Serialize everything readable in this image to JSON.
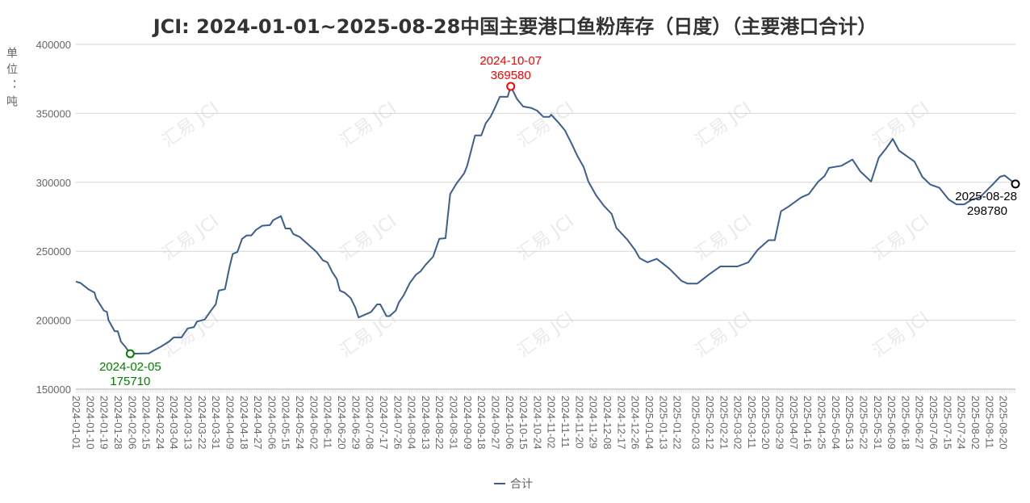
{
  "chart_data": {
    "type": "line",
    "title": "JCI: 2024-01-01~2025-08-28中国主要港口鱼粉库存（日度）（主要港口合计）",
    "ylabel": "单位：吨",
    "xlabel": "",
    "ylim": [
      150000,
      400000
    ],
    "yticks": [
      150000,
      200000,
      250000,
      300000,
      350000,
      400000
    ],
    "xlim": [
      "2024-01-01",
      "2025-08-28"
    ],
    "xticks": [
      "2024-01-01",
      "2024-01-10",
      "2024-01-19",
      "2024-01-28",
      "2024-02-06",
      "2024-02-15",
      "2024-02-24",
      "2024-03-04",
      "2024-03-13",
      "2024-03-22",
      "2024-03-31",
      "2024-04-09",
      "2024-04-18",
      "2024-04-27",
      "2024-05-06",
      "2024-05-15",
      "2024-05-24",
      "2024-06-02",
      "2024-06-11",
      "2024-06-20",
      "2024-06-29",
      "2024-07-08",
      "2024-07-17",
      "2024-07-26",
      "2024-08-04",
      "2024-08-13",
      "2024-08-22",
      "2024-08-31",
      "2024-09-09",
      "2024-09-18",
      "2024-09-27",
      "2024-10-06",
      "2024-10-15",
      "2024-10-24",
      "2024-11-02",
      "2024-11-11",
      "2024-11-20",
      "2024-11-29",
      "2024-12-08",
      "2024-12-17",
      "2024-12-26",
      "2025-01-04",
      "2025-01-13",
      "2025-01-22",
      "2025-02-03",
      "2025-02-12",
      "2025-02-21",
      "2025-03-02",
      "2025-03-11",
      "2025-03-20",
      "2025-03-29",
      "2025-04-07",
      "2025-04-16",
      "2025-04-25",
      "2025-05-04",
      "2025-05-13",
      "2025-05-22",
      "2025-05-31",
      "2025-06-09",
      "2025-06-18",
      "2025-06-27",
      "2025-07-06",
      "2025-07-15",
      "2025-07-24",
      "2025-08-02",
      "2025-08-11",
      "2025-08-20"
    ],
    "grid": true,
    "legend_position": "bottom",
    "series": [
      {
        "name": "合计",
        "color": "#3c5f8e",
        "points": [
          [
            "2024-01-01",
            228000
          ],
          [
            "2024-01-04",
            227000
          ],
          [
            "2024-01-09",
            222500
          ],
          [
            "2024-01-13",
            220000
          ],
          [
            "2024-01-14",
            216000
          ],
          [
            "2024-01-19",
            207000
          ],
          [
            "2024-01-21",
            206000
          ],
          [
            "2024-01-22",
            200000
          ],
          [
            "2024-01-26",
            192000
          ],
          [
            "2024-01-28",
            192000
          ],
          [
            "2024-01-30",
            184500
          ],
          [
            "2024-02-02",
            180500
          ],
          [
            "2024-02-05",
            175710
          ],
          [
            "2024-02-17",
            176000
          ],
          [
            "2024-02-20",
            178000
          ],
          [
            "2024-02-25",
            181000
          ],
          [
            "2024-03-01",
            184500
          ],
          [
            "2024-03-04",
            187500
          ],
          [
            "2024-03-09",
            187500
          ],
          [
            "2024-03-13",
            194000
          ],
          [
            "2024-03-17",
            195000
          ],
          [
            "2024-03-19",
            199000
          ],
          [
            "2024-03-24",
            200500
          ],
          [
            "2024-03-28",
            207000
          ],
          [
            "2024-03-31",
            211500
          ],
          [
            "2024-04-02",
            221500
          ],
          [
            "2024-04-06",
            222500
          ],
          [
            "2024-04-09",
            239000
          ],
          [
            "2024-04-11",
            248000
          ],
          [
            "2024-04-14",
            249500
          ],
          [
            "2024-04-17",
            259000
          ],
          [
            "2024-04-20",
            261500
          ],
          [
            "2024-04-23",
            261500
          ],
          [
            "2024-04-26",
            265500
          ],
          [
            "2024-04-30",
            268500
          ],
          [
            "2024-05-05",
            269000
          ],
          [
            "2024-05-07",
            272500
          ],
          [
            "2024-05-12",
            275500
          ],
          [
            "2024-05-15",
            266500
          ],
          [
            "2024-05-18",
            266500
          ],
          [
            "2024-05-20",
            262500
          ],
          [
            "2024-05-24",
            260500
          ],
          [
            "2024-05-27",
            257500
          ],
          [
            "2024-05-31",
            253500
          ],
          [
            "2024-06-04",
            249500
          ],
          [
            "2024-06-08",
            243500
          ],
          [
            "2024-06-11",
            242000
          ],
          [
            "2024-06-14",
            235000
          ],
          [
            "2024-06-17",
            230000
          ],
          [
            "2024-06-19",
            221500
          ],
          [
            "2024-06-22",
            220000
          ],
          [
            "2024-06-26",
            216000
          ],
          [
            "2024-06-29",
            209000
          ],
          [
            "2024-07-01",
            202000
          ],
          [
            "2024-07-05",
            204000
          ],
          [
            "2024-07-09",
            206000
          ],
          [
            "2024-07-13",
            211500
          ],
          [
            "2024-07-15",
            211500
          ],
          [
            "2024-07-19",
            203000
          ],
          [
            "2024-07-21",
            203000
          ],
          [
            "2024-07-25",
            207000
          ],
          [
            "2024-07-27",
            213000
          ],
          [
            "2024-07-30",
            218000
          ],
          [
            "2024-08-03",
            227000
          ],
          [
            "2024-08-07",
            233000
          ],
          [
            "2024-08-10",
            235500
          ],
          [
            "2024-08-13",
            240000
          ],
          [
            "2024-08-18",
            246000
          ],
          [
            "2024-08-22",
            259000
          ],
          [
            "2024-08-26",
            259500
          ],
          [
            "2024-08-29",
            291500
          ],
          [
            "2024-09-02",
            299000
          ],
          [
            "2024-09-07",
            306500
          ],
          [
            "2024-09-09",
            312000
          ],
          [
            "2024-09-14",
            334000
          ],
          [
            "2024-09-18",
            334000
          ],
          [
            "2024-09-21",
            343000
          ],
          [
            "2024-09-24",
            347500
          ],
          [
            "2024-09-27",
            354500
          ],
          [
            "2024-09-30",
            362000
          ],
          [
            "2024-10-05",
            362000
          ],
          [
            "2024-10-07",
            369580
          ],
          [
            "2024-10-11",
            360500
          ],
          [
            "2024-10-15",
            355000
          ],
          [
            "2024-10-20",
            354000
          ],
          [
            "2024-10-24",
            352000
          ],
          [
            "2024-10-28",
            347500
          ],
          [
            "2024-11-01",
            347500
          ],
          [
            "2024-11-02",
            349000
          ],
          [
            "2024-11-07",
            343000
          ],
          [
            "2024-11-11",
            337500
          ],
          [
            "2024-11-15",
            328500
          ],
          [
            "2024-11-19",
            319000
          ],
          [
            "2024-11-23",
            311000
          ],
          [
            "2024-11-26",
            300500
          ],
          [
            "2024-12-01",
            290500
          ],
          [
            "2024-12-06",
            283000
          ],
          [
            "2024-12-11",
            277000
          ],
          [
            "2024-12-14",
            267000
          ],
          [
            "2024-12-21",
            258500
          ],
          [
            "2024-12-26",
            251000
          ],
          [
            "2024-12-29",
            245000
          ],
          [
            "2025-01-03",
            242000
          ],
          [
            "2025-01-09",
            244500
          ],
          [
            "2025-01-17",
            237500
          ],
          [
            "2025-01-25",
            228500
          ],
          [
            "2025-01-29",
            226500
          ],
          [
            "2025-02-04",
            226500
          ],
          [
            "2025-02-12",
            233500
          ],
          [
            "2025-02-19",
            239000
          ],
          [
            "2025-03-02",
            239000
          ],
          [
            "2025-03-09",
            242000
          ],
          [
            "2025-03-15",
            251000
          ],
          [
            "2025-03-22",
            258000
          ],
          [
            "2025-03-26",
            258000
          ],
          [
            "2025-03-30",
            279000
          ],
          [
            "2025-04-04",
            282500
          ],
          [
            "2025-04-12",
            289000
          ],
          [
            "2025-04-17",
            291500
          ],
          [
            "2025-04-23",
            300500
          ],
          [
            "2025-04-27",
            304500
          ],
          [
            "2025-04-30",
            310500
          ],
          [
            "2025-05-08",
            312000
          ],
          [
            "2025-05-15",
            316500
          ],
          [
            "2025-05-20",
            308000
          ],
          [
            "2025-05-27",
            300500
          ],
          [
            "2025-06-01",
            318000
          ],
          [
            "2025-06-06",
            325000
          ],
          [
            "2025-06-10",
            331500
          ],
          [
            "2025-06-14",
            323000
          ],
          [
            "2025-06-19",
            319000
          ],
          [
            "2025-06-24",
            315000
          ],
          [
            "2025-06-29",
            304000
          ],
          [
            "2025-07-04",
            298500
          ],
          [
            "2025-07-10",
            296000
          ],
          [
            "2025-07-16",
            287500
          ],
          [
            "2025-07-21",
            284000
          ],
          [
            "2025-07-26",
            284000
          ],
          [
            "2025-07-31",
            287500
          ],
          [
            "2025-08-05",
            289000
          ],
          [
            "2025-08-13",
            298000
          ],
          [
            "2025-08-18",
            304000
          ],
          [
            "2025-08-21",
            305000
          ],
          [
            "2025-08-28",
            298780
          ]
        ]
      }
    ],
    "annotations": [
      {
        "label": "min",
        "date": "2024-02-05",
        "value": "175710",
        "color": "#008000"
      },
      {
        "label": "max",
        "date": "2024-10-07",
        "value": "369580",
        "color": "#ff0000"
      },
      {
        "label": "last",
        "date": "2025-08-28",
        "value": "298780",
        "color": "#000000"
      }
    ],
    "watermark": "汇易 JCI"
  }
}
